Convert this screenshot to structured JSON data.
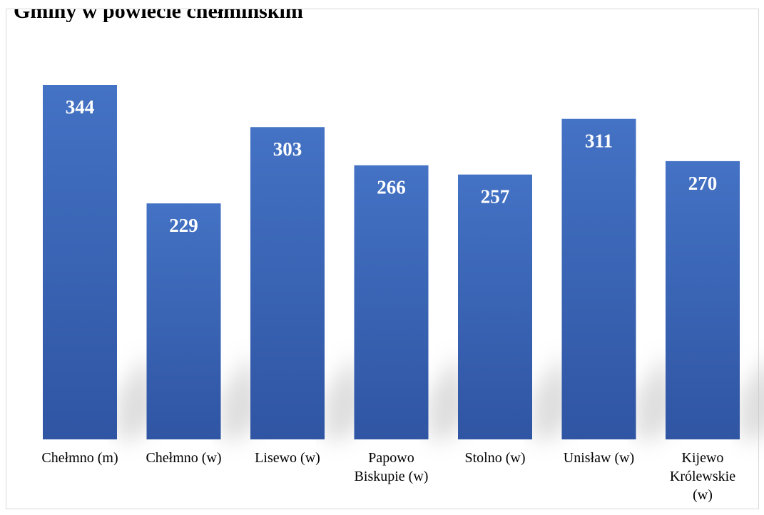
{
  "chart_data": {
    "type": "bar",
    "title": "Gminy w powiecie chełmińskim",
    "categories": [
      [
        "Chełmno (m)"
      ],
      [
        "Chełmno (w)"
      ],
      [
        "Lisewo (w)"
      ],
      [
        "Papowo",
        "Biskupie (w)"
      ],
      [
        "Stolno (w)"
      ],
      [
        "Unisław (w)"
      ],
      [
        "Kijewo",
        "Królewskie",
        "(w)"
      ]
    ],
    "values": [
      344,
      229,
      303,
      266,
      257,
      311,
      270
    ],
    "ylim": [
      0,
      344
    ],
    "grid": false,
    "legend": "none",
    "data_labels": true,
    "colors": {
      "bar_top": "#4472C4",
      "bar_bottom": "#2F55A3",
      "label": "#FFFFFF",
      "shadow": "#BFBFBF"
    }
  }
}
